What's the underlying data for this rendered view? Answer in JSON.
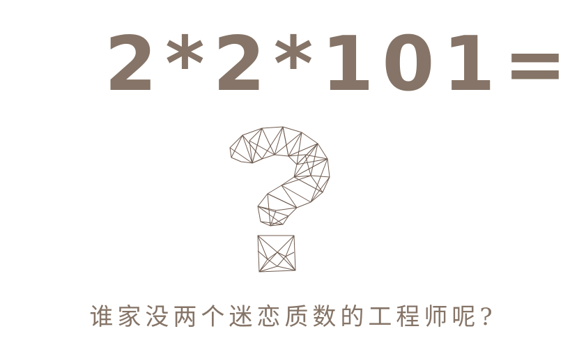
{
  "equation": {
    "text": "2*2*101="
  },
  "question_mark": {
    "icon": "polygonal-question-mark-icon",
    "stroke_color": "#6e5a4e"
  },
  "caption": {
    "text": "谁家没两个迷恋质数的工程师呢?"
  },
  "colors": {
    "text": "#857467",
    "background": "#ffffff"
  }
}
